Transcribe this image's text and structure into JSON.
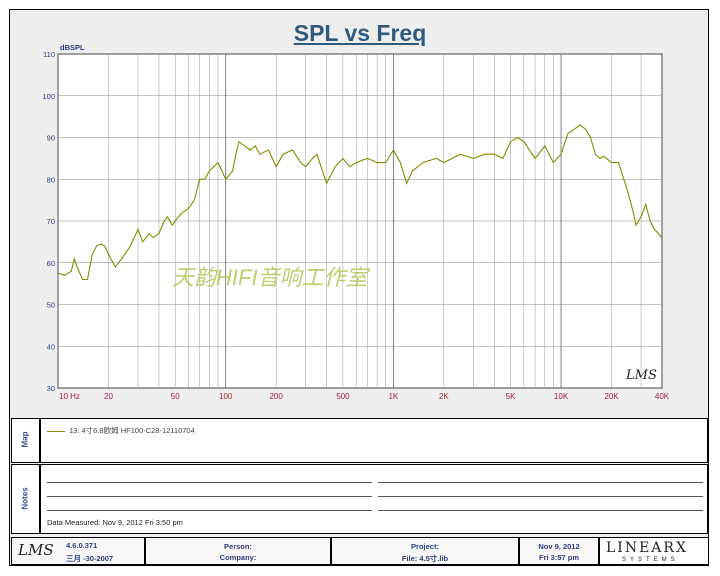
{
  "title": "SPL vs Freq",
  "chart_data": {
    "type": "line",
    "title": "SPL vs Freq",
    "ylabel": "dBSPL",
    "xlabel": "",
    "xscale": "log",
    "xlim": [
      10,
      40000
    ],
    "ylim": [
      30,
      110
    ],
    "grid": true,
    "y_ticks": [
      30,
      40,
      50,
      60,
      70,
      80,
      90,
      100,
      110
    ],
    "x_ticks": [
      {
        "v": 10,
        "label": "10 Hz"
      },
      {
        "v": 20,
        "label": "20"
      },
      {
        "v": 50,
        "label": "50"
      },
      {
        "v": 100,
        "label": "100"
      },
      {
        "v": 200,
        "label": "200"
      },
      {
        "v": 500,
        "label": "500"
      },
      {
        "v": 1000,
        "label": "1K"
      },
      {
        "v": 2000,
        "label": "2K"
      },
      {
        "v": 5000,
        "label": "5K"
      },
      {
        "v": 10000,
        "label": "10K"
      },
      {
        "v": 20000,
        "label": "20K"
      },
      {
        "v": 40000,
        "label": "40K"
      }
    ],
    "series": [
      {
        "name": "13: 4寸6.8欧姆 HF100-C28-12110704",
        "color": "#8a8a00",
        "x": [
          10,
          11,
          12,
          12.5,
          13,
          14,
          15,
          16,
          17,
          18,
          19,
          20,
          22,
          24,
          25,
          27,
          30,
          32,
          35,
          37,
          40,
          43,
          45,
          48,
          50,
          55,
          60,
          65,
          70,
          75,
          80,
          90,
          95,
          100,
          110,
          115,
          120,
          130,
          140,
          150,
          160,
          180,
          200,
          220,
          250,
          280,
          300,
          330,
          350,
          400,
          450,
          500,
          550,
          600,
          700,
          800,
          900,
          1000,
          1100,
          1200,
          1300,
          1500,
          1800,
          2000,
          2500,
          3000,
          3500,
          4000,
          4500,
          5000,
          5500,
          6000,
          7000,
          8000,
          9000,
          10000,
          11000,
          12000,
          13000,
          14000,
          15000,
          16000,
          17000,
          18000,
          20000,
          22000,
          25000,
          27000,
          28000,
          30000,
          32000,
          34000,
          36000,
          38000,
          40000
        ],
        "y": [
          57.5,
          57,
          58,
          61,
          59,
          56,
          56,
          62,
          64,
          64.5,
          64,
          62,
          59,
          61,
          62,
          64,
          68,
          65,
          67,
          66,
          67,
          70,
          71,
          69,
          70,
          72,
          73,
          75,
          80,
          80,
          82,
          84,
          82,
          80,
          82,
          86,
          89,
          88,
          87,
          88,
          86,
          87,
          83,
          86,
          87,
          84,
          83,
          85,
          86,
          79,
          83,
          85,
          83,
          84,
          85,
          84,
          84,
          87,
          84,
          79,
          82,
          84,
          85,
          84,
          86,
          85,
          86,
          86,
          85,
          89,
          90,
          89,
          85,
          88,
          84,
          86,
          91,
          92,
          93,
          92,
          90,
          86,
          85,
          85.5,
          84,
          84,
          77,
          72,
          69,
          71,
          74,
          70,
          68,
          67,
          66
        ]
      }
    ]
  },
  "legend": {
    "map_label": "Map",
    "entry": "13: 4寸6.8欧姆 HF100-C28-12110704"
  },
  "notes": {
    "label": "Notes",
    "date_measured": "Data Measured: Nov  9, 2012  Fri  3:50 pm"
  },
  "watermark": "天韵HIFI音响工作室",
  "plot_logo": "LMS",
  "footer": {
    "logo": "LMS",
    "version": "4.6.0.371",
    "build_date": "三月 -30-2007",
    "person_label": "Person:",
    "company_label": "Company:",
    "project_label": "Project:",
    "file_label": "File: 4.5寸.lib",
    "date": "Nov  9, 2012",
    "time": "Fri  3:57 pm",
    "brand": "LINEARX",
    "brand_sub": "SYSTEMS"
  }
}
